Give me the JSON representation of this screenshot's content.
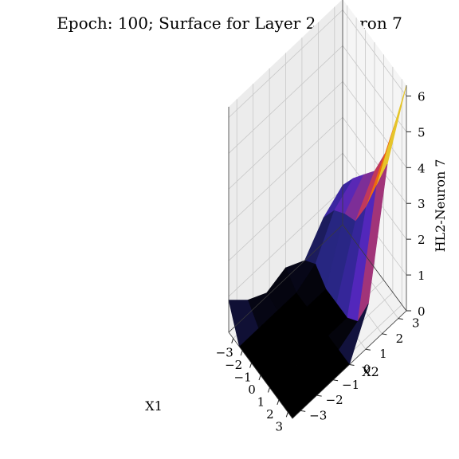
{
  "chart_data": {
    "type": "surface3d",
    "title": "Epoch: 100; Surface for Layer 2, Neuron 7",
    "xlabel": "X1",
    "ylabel": "X2",
    "zlabel": "HL2-Neuron 7",
    "xlim": [
      -3.5,
      3.5
    ],
    "ylim": [
      -3.5,
      3.5
    ],
    "zlim": [
      0,
      6.3
    ],
    "xticks": [
      "−3",
      "−2",
      "−1",
      "0",
      "1",
      "2",
      "3"
    ],
    "yticks": [
      "−3",
      "−2",
      "−1",
      "0",
      "1",
      "2",
      "3"
    ],
    "zticks": [
      "0",
      "1",
      "2",
      "3",
      "4",
      "5",
      "6"
    ],
    "colormap": "CMRmap",
    "x": [
      -3.5,
      -2.33,
      -1.17,
      0,
      1.17,
      2.33,
      3.5
    ],
    "y": [
      -3.5,
      -2.33,
      -1.17,
      0,
      1.17,
      2.33,
      3.5
    ],
    "z": [
      [
        0.9,
        0.0,
        0.0,
        0.0,
        0.0,
        0.0,
        0.0
      ],
      [
        0.4,
        0.0,
        0.0,
        0.0,
        0.0,
        0.0,
        0.0
      ],
      [
        0.1,
        0.0,
        0.0,
        0.0,
        0.0,
        0.0,
        0.0
      ],
      [
        0.3,
        0.0,
        0.0,
        0.0,
        0.0,
        0.0,
        0.0
      ],
      [
        0.0,
        0.3,
        0.0,
        0.0,
        0.0,
        0.3,
        1.2
      ],
      [
        0.7,
        1.3,
        1.6,
        1.8,
        2.6,
        3.6,
        4.6
      ],
      [
        1.1,
        1.7,
        2.2,
        2.7,
        3.6,
        4.9,
        6.3
      ]
    ]
  }
}
